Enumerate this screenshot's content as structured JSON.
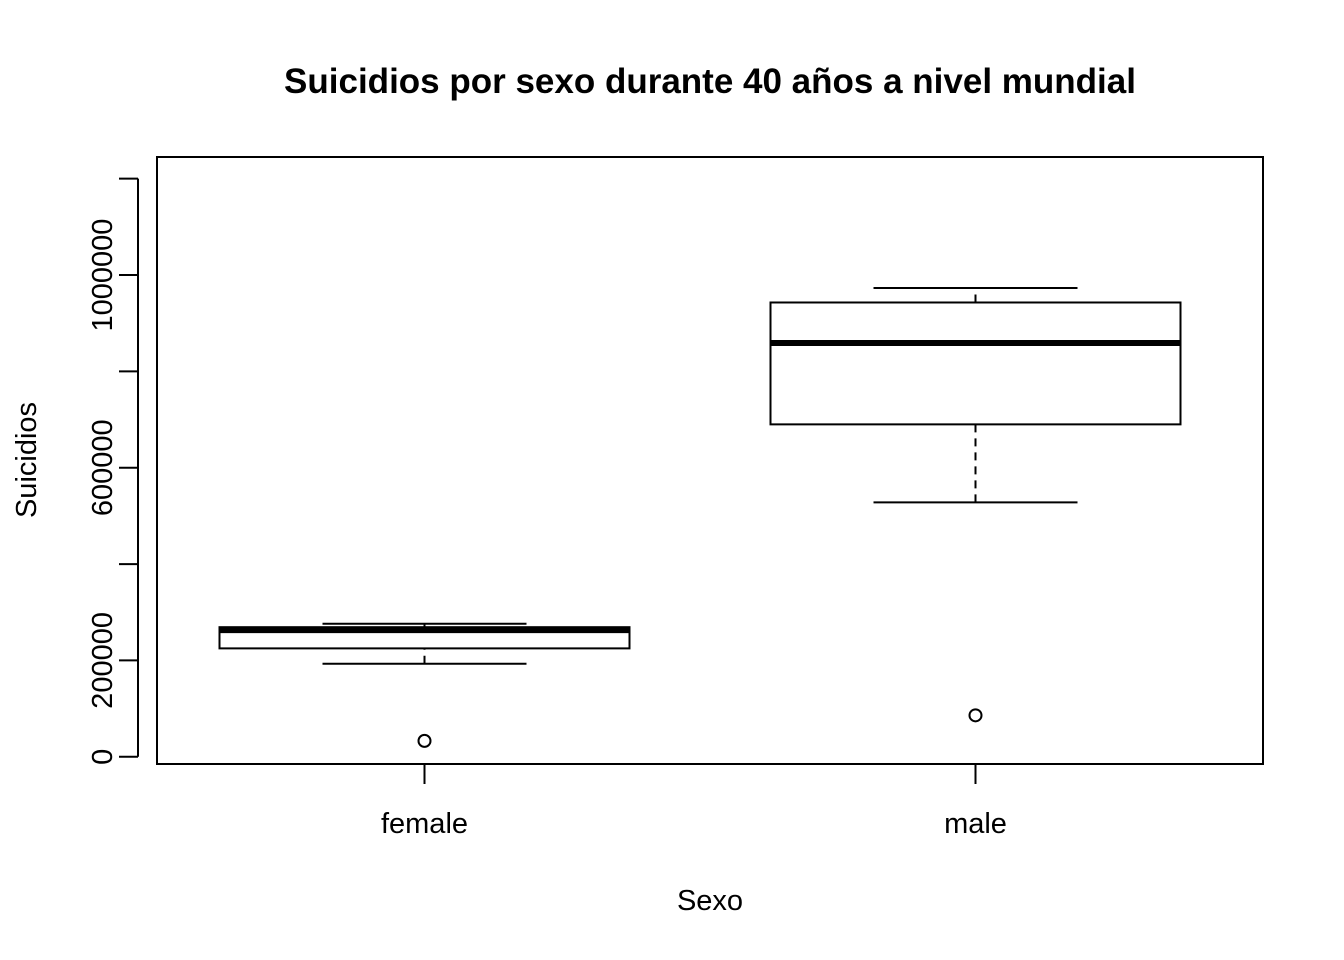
{
  "chart_data": {
    "type": "boxplot",
    "title": "Suicidios por sexo durante 40 años a nivel mundial",
    "xlabel": "Sexo",
    "ylabel": "Suicidios",
    "categories": [
      "female",
      "male"
    ],
    "ylim": [
      -15000,
      1245000
    ],
    "yticks": [
      0,
      200000,
      400000,
      600000,
      800000,
      1000000,
      1200000
    ],
    "ytick_labels": [
      "0",
      "200000",
      "",
      "600000",
      "",
      "1000000",
      ""
    ],
    "boxes": [
      {
        "name": "female",
        "whisker_low": 193000,
        "q1": 225000,
        "median": 263000,
        "q3": 269000,
        "whisker_high": 276000,
        "outliers": [
          33000
        ]
      },
      {
        "name": "male",
        "whisker_low": 528000,
        "q1": 690000,
        "median": 859000,
        "q3": 943000,
        "whisker_high": 973000,
        "outliers": [
          86000
        ]
      }
    ]
  }
}
